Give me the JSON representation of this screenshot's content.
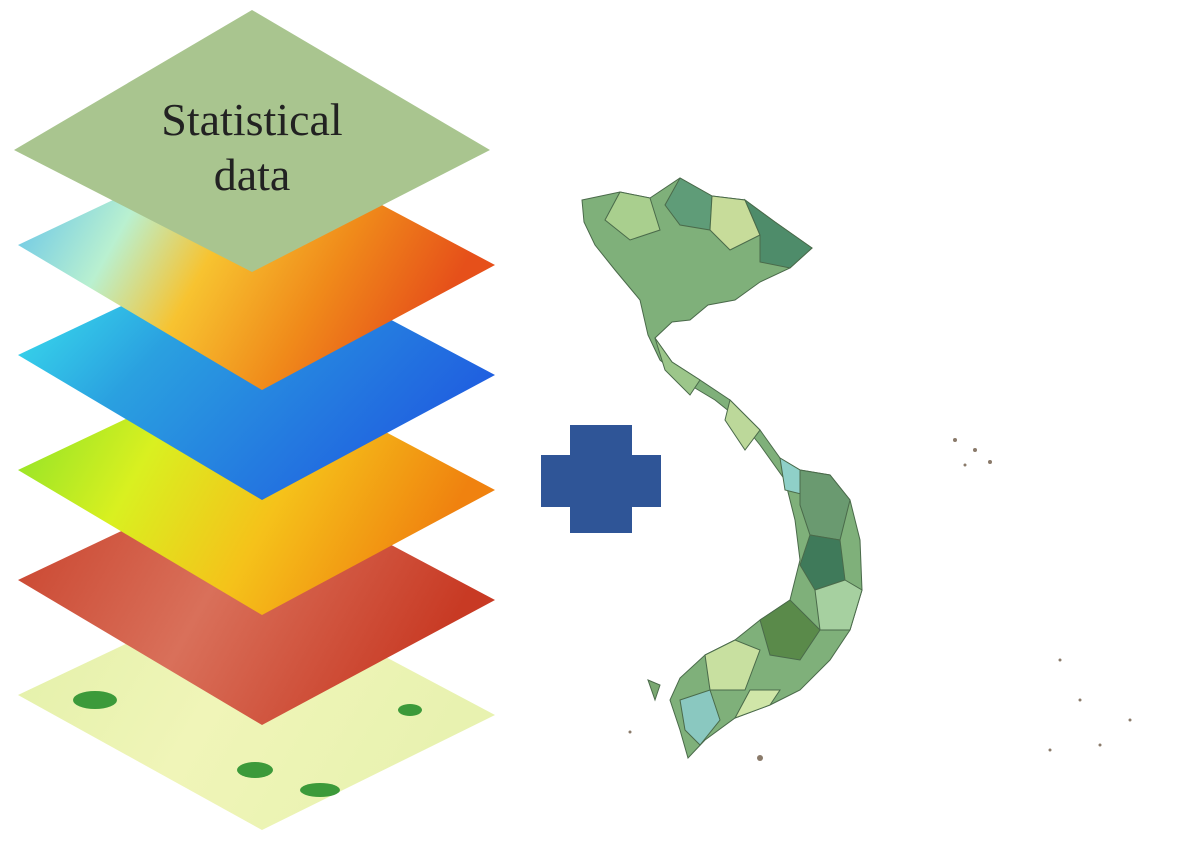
{
  "top_layer": {
    "lines": [
      "Statistical",
      "data"
    ]
  }
}
